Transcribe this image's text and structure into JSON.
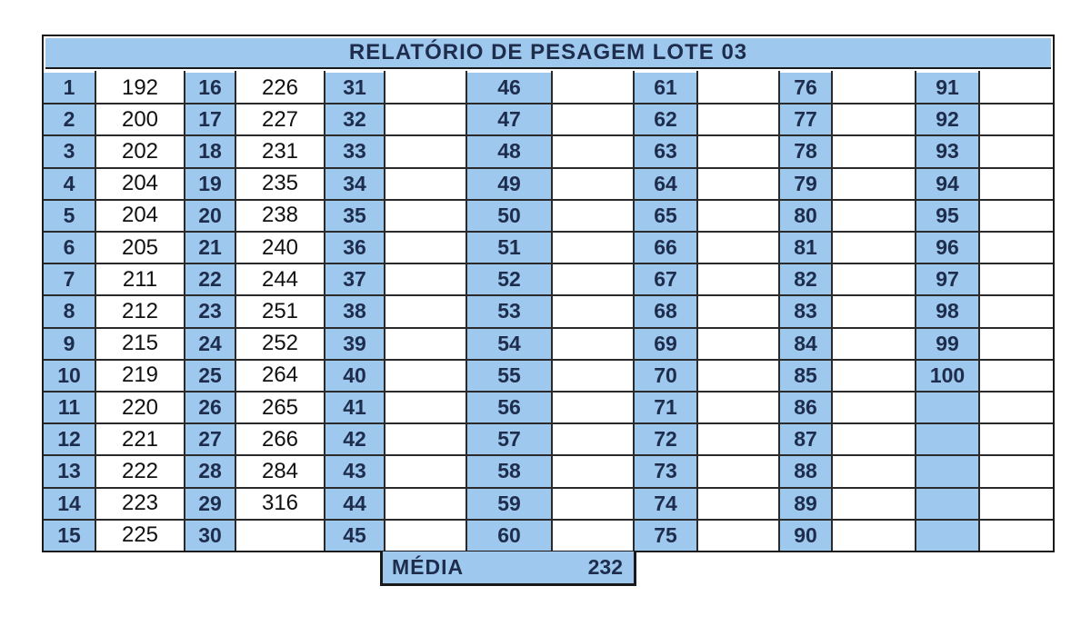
{
  "report": {
    "title": "RELATÓRIO DE PESAGEM LOTE  03",
    "entries": [
      {
        "n": "1",
        "weight": "192"
      },
      {
        "n": "2",
        "weight": "200"
      },
      {
        "n": "3",
        "weight": "202"
      },
      {
        "n": "4",
        "weight": "204"
      },
      {
        "n": "5",
        "weight": "204"
      },
      {
        "n": "6",
        "weight": "205"
      },
      {
        "n": "7",
        "weight": "211"
      },
      {
        "n": "8",
        "weight": "212"
      },
      {
        "n": "9",
        "weight": "215"
      },
      {
        "n": "10",
        "weight": "219"
      },
      {
        "n": "11",
        "weight": "220"
      },
      {
        "n": "12",
        "weight": "221"
      },
      {
        "n": "13",
        "weight": "222"
      },
      {
        "n": "14",
        "weight": "223"
      },
      {
        "n": "15",
        "weight": "225"
      },
      {
        "n": "16",
        "weight": "226"
      },
      {
        "n": "17",
        "weight": "227"
      },
      {
        "n": "18",
        "weight": "231"
      },
      {
        "n": "19",
        "weight": "235"
      },
      {
        "n": "20",
        "weight": "238"
      },
      {
        "n": "21",
        "weight": "240"
      },
      {
        "n": "22",
        "weight": "244"
      },
      {
        "n": "23",
        "weight": "251"
      },
      {
        "n": "24",
        "weight": "252"
      },
      {
        "n": "25",
        "weight": "264"
      },
      {
        "n": "26",
        "weight": "265"
      },
      {
        "n": "27",
        "weight": "266"
      },
      {
        "n": "28",
        "weight": "284"
      },
      {
        "n": "29",
        "weight": "316"
      },
      {
        "n": "30",
        "weight": ""
      },
      {
        "n": "31",
        "weight": ""
      },
      {
        "n": "32",
        "weight": ""
      },
      {
        "n": "33",
        "weight": ""
      },
      {
        "n": "34",
        "weight": ""
      },
      {
        "n": "35",
        "weight": ""
      },
      {
        "n": "36",
        "weight": ""
      },
      {
        "n": "37",
        "weight": ""
      },
      {
        "n": "38",
        "weight": ""
      },
      {
        "n": "39",
        "weight": ""
      },
      {
        "n": "40",
        "weight": ""
      },
      {
        "n": "41",
        "weight": ""
      },
      {
        "n": "42",
        "weight": ""
      },
      {
        "n": "43",
        "weight": ""
      },
      {
        "n": "44",
        "weight": ""
      },
      {
        "n": "45",
        "weight": ""
      },
      {
        "n": "46",
        "weight": ""
      },
      {
        "n": "47",
        "weight": ""
      },
      {
        "n": "48",
        "weight": ""
      },
      {
        "n": "49",
        "weight": ""
      },
      {
        "n": "50",
        "weight": ""
      },
      {
        "n": "51",
        "weight": ""
      },
      {
        "n": "52",
        "weight": ""
      },
      {
        "n": "53",
        "weight": ""
      },
      {
        "n": "54",
        "weight": ""
      },
      {
        "n": "55",
        "weight": ""
      },
      {
        "n": "56",
        "weight": ""
      },
      {
        "n": "57",
        "weight": ""
      },
      {
        "n": "58",
        "weight": ""
      },
      {
        "n": "59",
        "weight": ""
      },
      {
        "n": "60",
        "weight": ""
      },
      {
        "n": "61",
        "weight": ""
      },
      {
        "n": "62",
        "weight": ""
      },
      {
        "n": "63",
        "weight": ""
      },
      {
        "n": "64",
        "weight": ""
      },
      {
        "n": "65",
        "weight": ""
      },
      {
        "n": "66",
        "weight": ""
      },
      {
        "n": "67",
        "weight": ""
      },
      {
        "n": "68",
        "weight": ""
      },
      {
        "n": "69",
        "weight": ""
      },
      {
        "n": "70",
        "weight": ""
      },
      {
        "n": "71",
        "weight": ""
      },
      {
        "n": "72",
        "weight": ""
      },
      {
        "n": "73",
        "weight": ""
      },
      {
        "n": "74",
        "weight": ""
      },
      {
        "n": "75",
        "weight": ""
      },
      {
        "n": "76",
        "weight": ""
      },
      {
        "n": "77",
        "weight": ""
      },
      {
        "n": "78",
        "weight": ""
      },
      {
        "n": "79",
        "weight": ""
      },
      {
        "n": "80",
        "weight": ""
      },
      {
        "n": "81",
        "weight": ""
      },
      {
        "n": "82",
        "weight": ""
      },
      {
        "n": "83",
        "weight": ""
      },
      {
        "n": "84",
        "weight": ""
      },
      {
        "n": "85",
        "weight": ""
      },
      {
        "n": "86",
        "weight": ""
      },
      {
        "n": "87",
        "weight": ""
      },
      {
        "n": "88",
        "weight": ""
      },
      {
        "n": "89",
        "weight": ""
      },
      {
        "n": "90",
        "weight": ""
      },
      {
        "n": "91",
        "weight": ""
      },
      {
        "n": "92",
        "weight": ""
      },
      {
        "n": "93",
        "weight": ""
      },
      {
        "n": "94",
        "weight": ""
      },
      {
        "n": "95",
        "weight": ""
      },
      {
        "n": "96",
        "weight": ""
      },
      {
        "n": "97",
        "weight": ""
      },
      {
        "n": "98",
        "weight": ""
      },
      {
        "n": "99",
        "weight": ""
      },
      {
        "n": "100",
        "weight": ""
      },
      {
        "n": "",
        "weight": ""
      },
      {
        "n": "",
        "weight": ""
      },
      {
        "n": "",
        "weight": ""
      },
      {
        "n": "",
        "weight": ""
      },
      {
        "n": "",
        "weight": ""
      }
    ],
    "media": {
      "label": "MÉDIA",
      "value": "232"
    }
  },
  "colors": {
    "header_fill": "#9ec8ee",
    "number_text": "#1f2d4d",
    "border": "#1a1a1a"
  }
}
